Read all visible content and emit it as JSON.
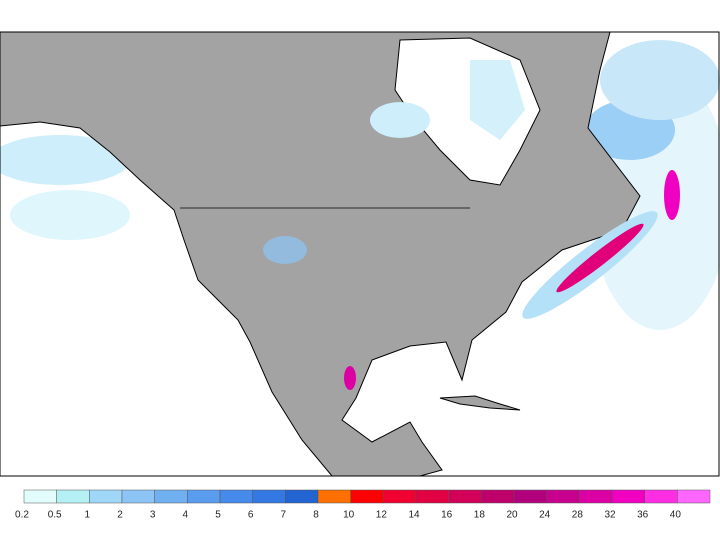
{
  "colorbar": {
    "ticks": [
      0.2,
      0.5,
      1,
      2,
      3,
      4,
      5,
      6,
      7,
      8,
      10,
      12,
      14,
      16,
      18,
      20,
      24,
      28,
      32,
      36,
      40
    ],
    "colors": [
      "#e2fcfc",
      "#b4f0f4",
      "#a0d6f8",
      "#8cc4f6",
      "#70b0f0",
      "#5a9cee",
      "#468aec",
      "#3478e4",
      "#2264d2",
      "#ff7000",
      "#ff0000",
      "#f00030",
      "#e20044",
      "#d20058",
      "#c0006a",
      "#b2007c",
      "#c8008e",
      "#dc00a4",
      "#f000c0",
      "#ff2ee4",
      "#ff66ff"
    ]
  }
}
